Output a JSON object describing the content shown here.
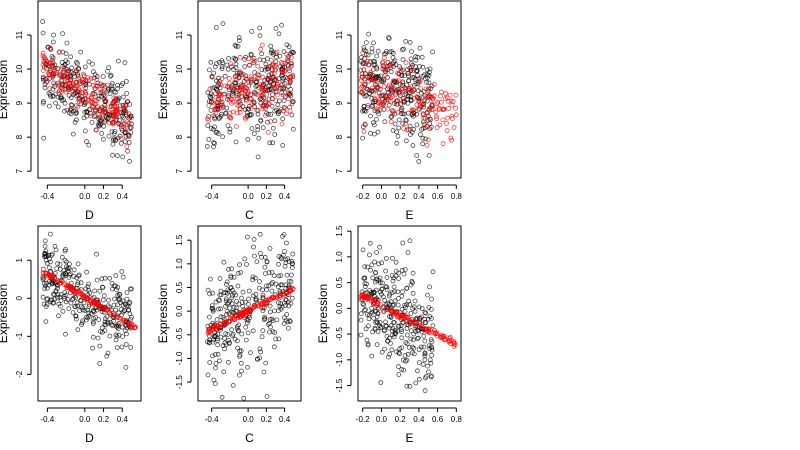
{
  "figure": {
    "background": "#ffffff"
  },
  "chart_data": [
    {
      "type": "scatter",
      "panel": "top-left",
      "xlabel": "D",
      "ylabel": "Expression",
      "xlim": [
        -0.5,
        0.6
      ],
      "ylim": [
        6.8,
        12.0
      ],
      "xticks": [
        -0.4,
        0.0,
        0.2,
        0.4
      ],
      "xtick_labels": [
        "-0.4",
        "0.0",
        "0.2",
        "0.4"
      ],
      "yticks": [
        7,
        8,
        9,
        10,
        11
      ],
      "ytick_labels": [
        "7",
        "8",
        "9",
        "10",
        "11"
      ],
      "series": [
        {
          "color": "#000000",
          "description": "observed",
          "x_range": [
            -0.45,
            0.5
          ],
          "trend": [
            [
              -0.45,
              9.9
            ],
            [
              0.5,
              8.5
            ]
          ],
          "n": 320,
          "spread": 0.55
        },
        {
          "color": "#ff0000",
          "description": "fitted",
          "x_range": [
            -0.45,
            0.5
          ],
          "trend": [
            [
              -0.45,
              10.1
            ],
            [
              0.5,
              8.4
            ]
          ],
          "n": 180,
          "spread": 0.3
        }
      ]
    },
    {
      "type": "scatter",
      "panel": "top-middle",
      "xlabel": "C",
      "ylabel": "Expression",
      "xlim": [
        -0.55,
        0.58
      ],
      "ylim": [
        6.8,
        12.0
      ],
      "xticks": [
        -0.4,
        0.0,
        0.2,
        0.4
      ],
      "xtick_labels": [
        "-0.4",
        "0.0",
        "0.2",
        "0.4"
      ],
      "yticks": [
        7,
        8,
        9,
        10,
        11
      ],
      "ytick_labels": [
        "7",
        "8",
        "9",
        "10",
        "11"
      ],
      "series": [
        {
          "color": "#000000",
          "description": "observed",
          "x_range": [
            -0.45,
            0.5
          ],
          "trend": [
            [
              -0.45,
              9.0
            ],
            [
              0.5,
              9.7
            ]
          ],
          "n": 320,
          "spread": 0.7
        },
        {
          "color": "#ff0000",
          "description": "fitted",
          "x_range": [
            -0.45,
            0.5
          ],
          "trend": [
            [
              -0.45,
              9.0
            ],
            [
              0.5,
              9.8
            ]
          ],
          "n": 180,
          "spread": 0.5
        }
      ]
    },
    {
      "type": "scatter",
      "panel": "top-right",
      "xlabel": "E",
      "ylabel": "Expression",
      "xlim": [
        -0.25,
        0.85
      ],
      "ylim": [
        6.8,
        12.0
      ],
      "xticks": [
        -0.2,
        0.0,
        0.2,
        0.4,
        0.6,
        0.8
      ],
      "xtick_labels": [
        "-0.2",
        "0.0",
        "0.2",
        "0.4",
        "0.6",
        "0.8"
      ],
      "yticks": [
        7,
        8,
        9,
        10,
        11
      ],
      "ytick_labels": [
        "7",
        "8",
        "9",
        "10",
        "11"
      ],
      "series": [
        {
          "color": "#000000",
          "description": "observed",
          "x_range": [
            -0.22,
            0.55
          ],
          "trend": [
            [
              -0.22,
              9.6
            ],
            [
              0.55,
              9.0
            ]
          ],
          "n": 320,
          "spread": 0.7
        },
        {
          "color": "#ff0000",
          "description": "fitted",
          "x_range": [
            -0.22,
            0.8
          ],
          "trend": [
            [
              -0.22,
              9.7
            ],
            [
              0.8,
              8.6
            ]
          ],
          "n": 180,
          "spread": 0.45
        }
      ]
    },
    {
      "type": "scatter",
      "panel": "bottom-left",
      "xlabel": "D",
      "ylabel": "Expression",
      "xlim": [
        -0.5,
        0.6
      ],
      "ylim": [
        -2.7,
        1.9
      ],
      "xticks": [
        -0.4,
        0.0,
        0.2,
        0.4
      ],
      "xtick_labels": [
        "-0.4",
        "0.0",
        "0.2",
        "0.4"
      ],
      "yticks": [
        -2,
        -1,
        0,
        1
      ],
      "ytick_labels": [
        "-2",
        "-1",
        "0",
        "1"
      ],
      "series": [
        {
          "color": "#000000",
          "description": "residual",
          "x_range": [
            -0.45,
            0.5
          ],
          "trend": [
            [
              -0.45,
              0.65
            ],
            [
              0.5,
              -0.75
            ]
          ],
          "n": 320,
          "spread": 0.5
        },
        {
          "color": "#ff0000",
          "description": "fitted line",
          "x_range": [
            -0.45,
            0.55
          ],
          "trend": [
            [
              -0.45,
              0.7
            ],
            [
              0.55,
              -0.78
            ]
          ],
          "n": 120,
          "spread": 0.03
        }
      ]
    },
    {
      "type": "scatter",
      "panel": "bottom-middle",
      "xlabel": "C",
      "ylabel": "Expression",
      "xlim": [
        -0.55,
        0.58
      ],
      "ylim": [
        -1.9,
        1.8
      ],
      "xticks": [
        -0.4,
        0.0,
        0.2,
        0.4
      ],
      "xtick_labels": [
        "-0.4",
        "0.0",
        "0.2",
        "0.4"
      ],
      "yticks": [
        -1.5,
        -1.0,
        -0.5,
        0.0,
        0.5,
        1.0,
        1.5
      ],
      "ytick_labels": [
        "-1.5",
        "-1.0",
        "-0.5",
        "0.0",
        "0.5",
        "1.0",
        "1.5"
      ],
      "series": [
        {
          "color": "#000000",
          "description": "residual",
          "x_range": [
            -0.45,
            0.5
          ],
          "trend": [
            [
              -0.45,
              -0.4
            ],
            [
              0.5,
              0.45
            ]
          ],
          "n": 320,
          "spread": 0.6
        },
        {
          "color": "#ff0000",
          "description": "fitted line",
          "x_range": [
            -0.45,
            0.5
          ],
          "trend": [
            [
              -0.45,
              -0.42
            ],
            [
              0.5,
              0.48
            ]
          ],
          "n": 120,
          "spread": 0.03
        }
      ]
    },
    {
      "type": "scatter",
      "panel": "bottom-right",
      "xlabel": "E",
      "ylabel": "Expression",
      "xlim": [
        -0.25,
        0.85
      ],
      "ylim": [
        -1.8,
        1.6
      ],
      "xticks": [
        -0.2,
        0.0,
        0.2,
        0.4,
        0.6,
        0.8
      ],
      "xtick_labels": [
        "-0.2",
        "0.0",
        "0.2",
        "0.4",
        "0.6",
        "0.8"
      ],
      "yticks": [
        -1.5,
        -1.0,
        -0.5,
        0.0,
        0.5,
        1.0,
        1.5
      ],
      "ytick_labels": [
        "-1.5",
        "-1.0",
        "-0.5",
        "0.0",
        "0.5",
        "1.0",
        "1.5"
      ],
      "series": [
        {
          "color": "#000000",
          "description": "residual",
          "x_range": [
            -0.22,
            0.55
          ],
          "trend": [
            [
              -0.22,
              0.2
            ],
            [
              0.55,
              -0.45
            ]
          ],
          "n": 320,
          "spread": 0.55
        },
        {
          "color": "#ff0000",
          "description": "fitted line",
          "x_range": [
            -0.22,
            0.8
          ],
          "trend": [
            [
              -0.22,
              0.25
            ],
            [
              0.8,
              -0.7
            ]
          ],
          "n": 120,
          "spread": 0.03
        }
      ]
    }
  ]
}
